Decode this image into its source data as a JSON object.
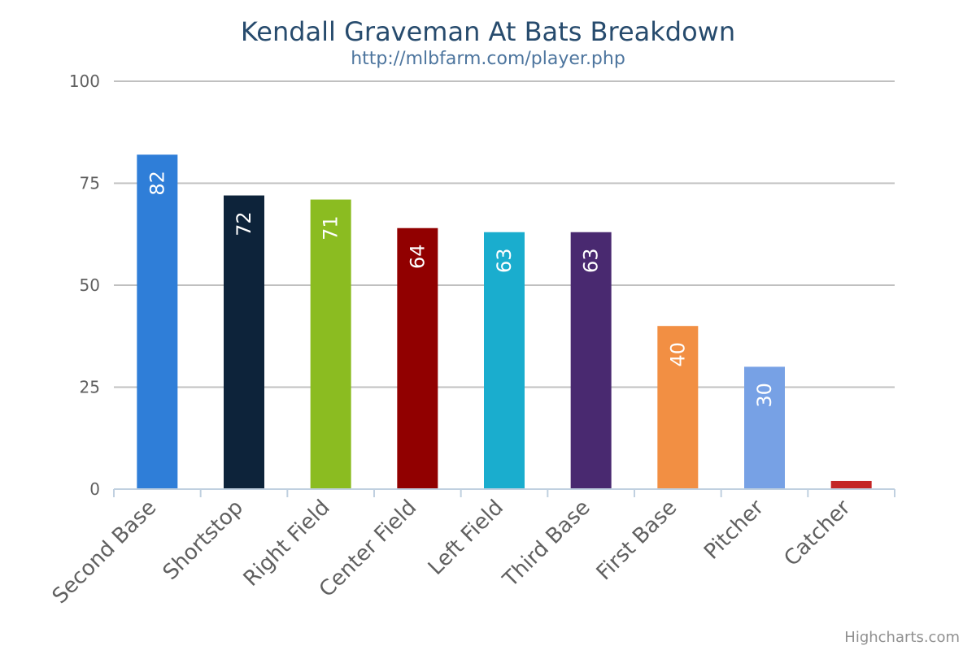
{
  "chart_data": {
    "type": "bar",
    "title": "Kendall Graveman At Bats Breakdown",
    "subtitle": "http://mlbfarm.com/player.php",
    "categories": [
      "Second Base",
      "Shortstop",
      "Right Field",
      "Center Field",
      "Left Field",
      "Third Base",
      "First Base",
      "Pitcher",
      "Catcher"
    ],
    "values": [
      82,
      72,
      71,
      64,
      63,
      63,
      40,
      30,
      2
    ],
    "data_labels": [
      "82",
      "72",
      "71",
      "64",
      "63",
      "63",
      "40",
      "30",
      ""
    ],
    "colors": [
      "#2f7ed8",
      "#0d233a",
      "#8bbc21",
      "#910000",
      "#1aadce",
      "#492970",
      "#f28f43",
      "#77a1e5",
      "#c42525"
    ],
    "ylim": [
      0,
      100
    ],
    "yticks": [
      0,
      25,
      50,
      75,
      100
    ],
    "ytick_labels": [
      "0",
      "25",
      "50",
      "75",
      "100"
    ],
    "xlabel": "",
    "ylabel": "",
    "grid": true,
    "legend": "none",
    "credits": "Highcharts.com"
  }
}
